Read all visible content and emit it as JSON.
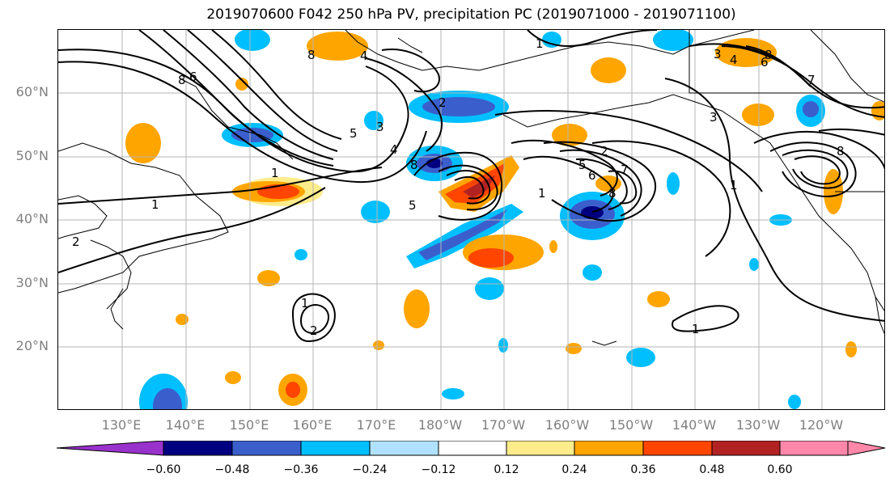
{
  "title": "2019070600 F042 250 hPa PV, precipitation PC (2019071000 - 2019071100)",
  "lat_labels": [
    "60°N",
    "50°N",
    "40°N",
    "30°N",
    "20°N"
  ],
  "lon_labels": [
    "130°E",
    "140°E",
    "150°E",
    "160°E",
    "170°E",
    "180°W",
    "170°W",
    "160°W",
    "150°W",
    "140°W",
    "130°W",
    "120°W"
  ],
  "colorbar": {
    "ticks": [
      "−0.60",
      "−0.48",
      "−0.36",
      "−0.24",
      "−0.12",
      "0.12",
      "0.24",
      "0.36",
      "0.48",
      "0.60"
    ],
    "colors": [
      "#9932cc",
      "#000080",
      "#3a5fcd",
      "#00bfff",
      "#b0e2ff",
      "#ffffff",
      "#ffec8b",
      "#ffa500",
      "#ff4500",
      "#b22222",
      "#ff88aa"
    ]
  },
  "contour_labels": [
    "1",
    "2",
    "3",
    "4",
    "5",
    "6",
    "7",
    "8"
  ],
  "colors": {
    "pos_light": "#ffec8b",
    "pos_mid": "#ffa500",
    "pos_strong": "#ff4500",
    "pos_max": "#b22222",
    "neg_light": "#b0e2ff",
    "neg_mid": "#00bfff",
    "neg_strong": "#3a5fcd",
    "neg_max": "#000080"
  }
}
